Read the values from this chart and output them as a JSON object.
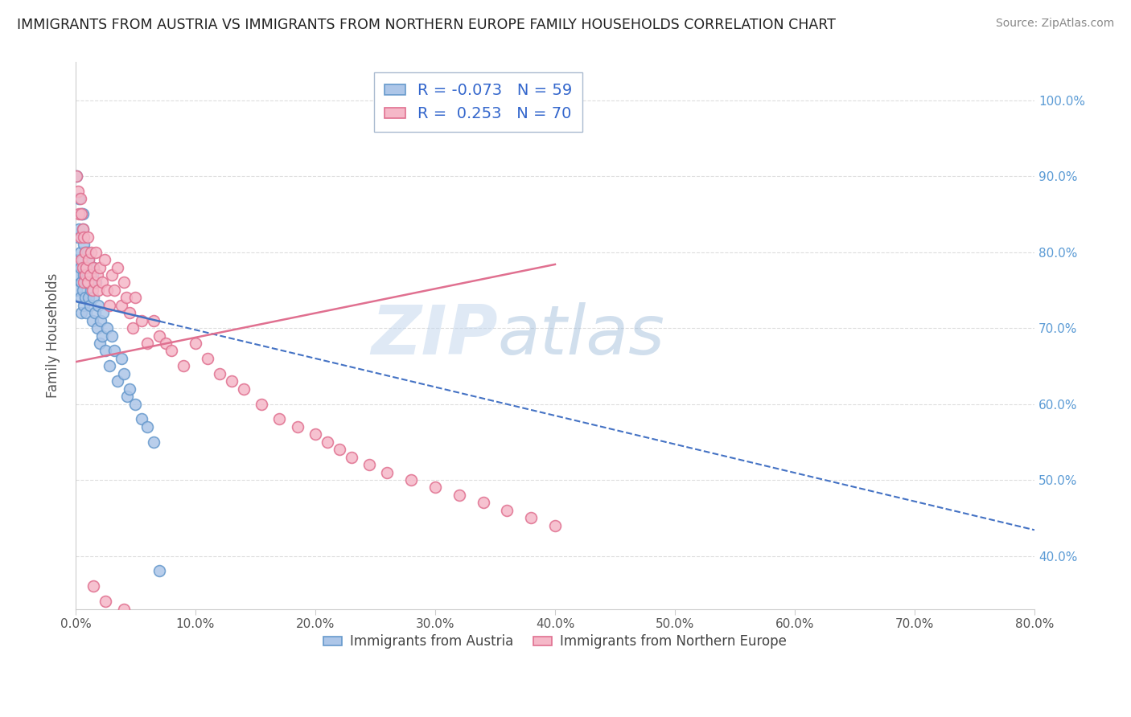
{
  "title": "IMMIGRANTS FROM AUSTRIA VS IMMIGRANTS FROM NORTHERN EUROPE FAMILY HOUSEHOLDS CORRELATION CHART",
  "source": "Source: ZipAtlas.com",
  "watermark": "ZIPatlas",
  "ylabel": "Family Households",
  "legend_labels": [
    "Immigrants from Austria",
    "Immigrants from Northern Europe"
  ],
  "blue_R": -0.073,
  "blue_N": 59,
  "pink_R": 0.253,
  "pink_N": 70,
  "blue_color": "#adc6e8",
  "pink_color": "#f5b8c8",
  "blue_edge_color": "#6699cc",
  "pink_edge_color": "#e07090",
  "blue_line_color": "#4472c4",
  "pink_line_color": "#e07090",
  "xlim": [
    0.0,
    0.8
  ],
  "ylim": [
    0.33,
    1.05
  ],
  "xticks": [
    0.0,
    0.1,
    0.2,
    0.3,
    0.4,
    0.5,
    0.6,
    0.7,
    0.8
  ],
  "yticks_right": [
    0.4,
    0.5,
    0.6,
    0.7,
    0.8,
    0.9,
    1.0
  ],
  "blue_scatter_x": [
    0.001,
    0.002,
    0.002,
    0.003,
    0.003,
    0.004,
    0.004,
    0.004,
    0.005,
    0.005,
    0.005,
    0.006,
    0.006,
    0.006,
    0.007,
    0.007,
    0.007,
    0.008,
    0.008,
    0.008,
    0.009,
    0.009,
    0.01,
    0.01,
    0.011,
    0.011,
    0.012,
    0.012,
    0.013,
    0.014,
    0.014,
    0.015,
    0.015,
    0.016,
    0.017,
    0.018,
    0.019,
    0.02,
    0.021,
    0.022,
    0.023,
    0.025,
    0.026,
    0.028,
    0.03,
    0.032,
    0.035,
    0.038,
    0.04,
    0.043,
    0.045,
    0.05,
    0.055,
    0.06,
    0.065,
    0.001,
    0.003,
    0.006,
    0.07
  ],
  "blue_scatter_y": [
    0.75,
    0.82,
    0.79,
    0.77,
    0.83,
    0.78,
    0.8,
    0.74,
    0.76,
    0.85,
    0.72,
    0.79,
    0.83,
    0.75,
    0.77,
    0.81,
    0.73,
    0.78,
    0.74,
    0.8,
    0.76,
    0.72,
    0.77,
    0.8,
    0.74,
    0.79,
    0.73,
    0.76,
    0.75,
    0.71,
    0.77,
    0.74,
    0.78,
    0.72,
    0.76,
    0.7,
    0.73,
    0.68,
    0.71,
    0.69,
    0.72,
    0.67,
    0.7,
    0.65,
    0.69,
    0.67,
    0.63,
    0.66,
    0.64,
    0.61,
    0.62,
    0.6,
    0.58,
    0.57,
    0.55,
    0.9,
    0.87,
    0.85,
    0.38
  ],
  "pink_scatter_x": [
    0.001,
    0.002,
    0.003,
    0.004,
    0.004,
    0.005,
    0.005,
    0.006,
    0.006,
    0.007,
    0.007,
    0.008,
    0.008,
    0.009,
    0.01,
    0.01,
    0.011,
    0.012,
    0.013,
    0.014,
    0.015,
    0.016,
    0.017,
    0.018,
    0.019,
    0.02,
    0.022,
    0.024,
    0.026,
    0.028,
    0.03,
    0.032,
    0.035,
    0.038,
    0.04,
    0.042,
    0.045,
    0.048,
    0.05,
    0.055,
    0.06,
    0.065,
    0.07,
    0.075,
    0.08,
    0.09,
    0.1,
    0.11,
    0.12,
    0.13,
    0.14,
    0.155,
    0.17,
    0.185,
    0.2,
    0.21,
    0.22,
    0.23,
    0.245,
    0.26,
    0.28,
    0.3,
    0.32,
    0.34,
    0.36,
    0.38,
    0.4,
    0.015,
    0.025,
    0.04
  ],
  "pink_scatter_y": [
    0.9,
    0.88,
    0.85,
    0.87,
    0.82,
    0.85,
    0.79,
    0.83,
    0.78,
    0.82,
    0.76,
    0.8,
    0.77,
    0.78,
    0.82,
    0.76,
    0.79,
    0.77,
    0.8,
    0.75,
    0.78,
    0.76,
    0.8,
    0.77,
    0.75,
    0.78,
    0.76,
    0.79,
    0.75,
    0.73,
    0.77,
    0.75,
    0.78,
    0.73,
    0.76,
    0.74,
    0.72,
    0.7,
    0.74,
    0.71,
    0.68,
    0.71,
    0.69,
    0.68,
    0.67,
    0.65,
    0.68,
    0.66,
    0.64,
    0.63,
    0.62,
    0.6,
    0.58,
    0.57,
    0.56,
    0.55,
    0.54,
    0.53,
    0.52,
    0.51,
    0.5,
    0.49,
    0.48,
    0.47,
    0.46,
    0.45,
    0.44,
    0.36,
    0.34,
    0.33
  ],
  "background_color": "#ffffff",
  "grid_color": "#dddddd",
  "grid_linestyle": "--"
}
